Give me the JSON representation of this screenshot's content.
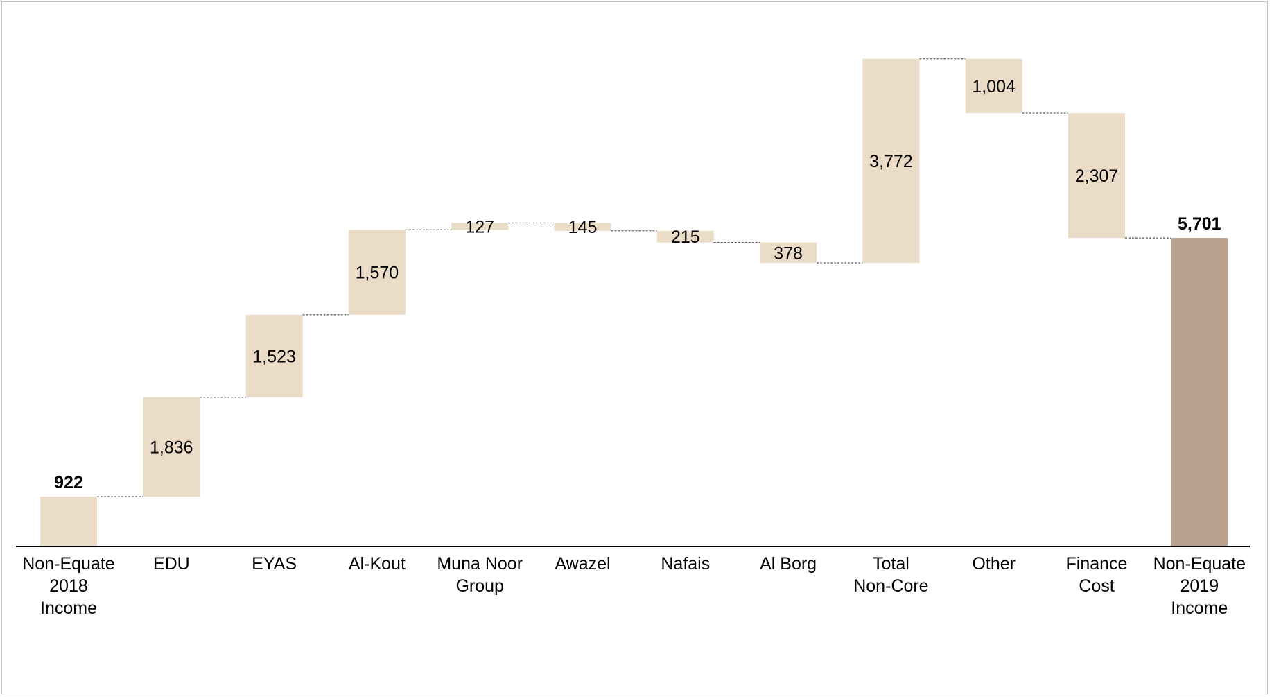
{
  "chart_data": {
    "type": "waterfall",
    "title": "",
    "xlabel": "",
    "ylabel": "",
    "ylim": [
      0,
      7000
    ],
    "grid": false,
    "legend": "none",
    "categories": [
      "Non-Equate\n2018\nIncome",
      "EDU",
      "EYAS",
      "Al-Kout",
      "Muna Noor\nGroup",
      "Awazel",
      "Nafais",
      "Al Borg",
      "Total\nNon-Core",
      "Other",
      "Finance\nCost",
      "Non-Equate\n2019\nIncome"
    ],
    "steps": [
      {
        "kind": "total",
        "value": 922,
        "label": "922"
      },
      {
        "kind": "increase",
        "value": 1836,
        "label": "1,836"
      },
      {
        "kind": "increase",
        "value": 1523,
        "label": "1,523"
      },
      {
        "kind": "increase",
        "value": 1570,
        "label": "1,570"
      },
      {
        "kind": "increase",
        "value": 127,
        "label": "127"
      },
      {
        "kind": "decrease",
        "value": 145,
        "label": "145"
      },
      {
        "kind": "decrease",
        "value": 215,
        "label": "215"
      },
      {
        "kind": "decrease",
        "value": 378,
        "label": "378"
      },
      {
        "kind": "increase",
        "value": 3772,
        "label": "3,772"
      },
      {
        "kind": "decrease",
        "value": 1004,
        "label": "1,004"
      },
      {
        "kind": "decrease",
        "value": 2307,
        "label": "2,307"
      },
      {
        "kind": "total",
        "value": 5701,
        "label": "5,701"
      }
    ],
    "colors": {
      "step": "#eadcc6",
      "final_total": "#b8a08c",
      "connector": "#555555",
      "axis": "#000000"
    }
  }
}
